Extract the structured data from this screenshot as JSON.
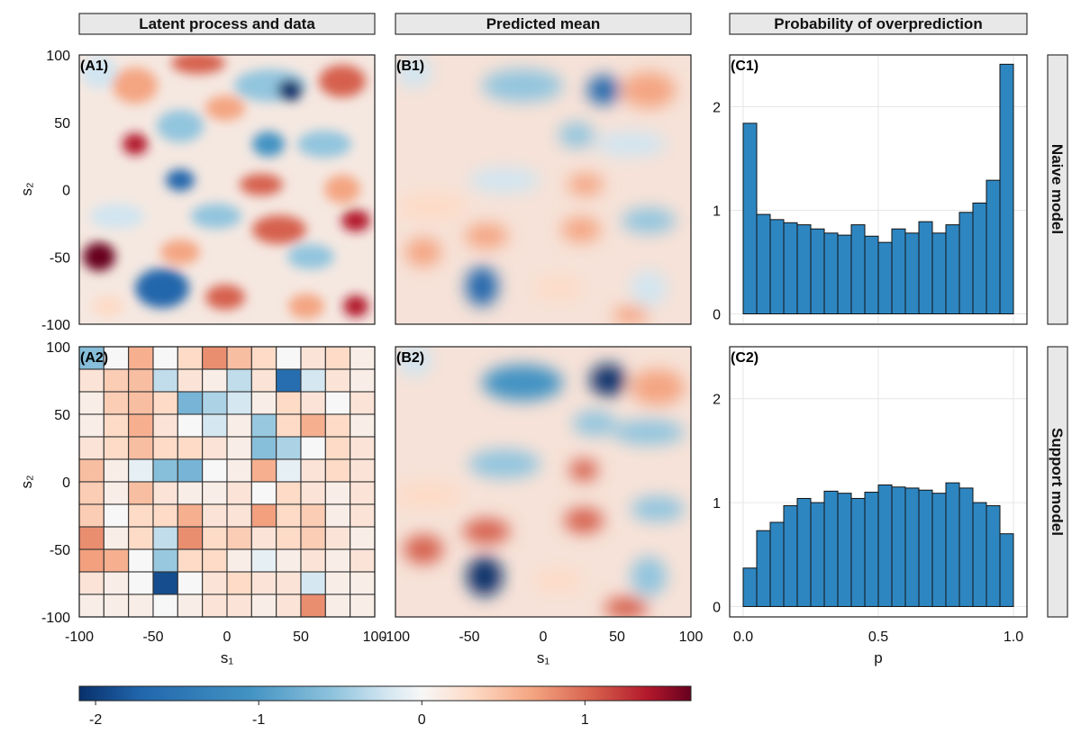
{
  "strips": {
    "col1": "Latent process and data",
    "col2": "Predicted mean",
    "col3": "Probability of overprediction",
    "row1": "Naive model",
    "row2": "Support model"
  },
  "panel_labels": {
    "a1": "(A1)",
    "b1": "(B1)",
    "c1": "(C1)",
    "a2": "(A2)",
    "b2": "(B2)",
    "c2": "(C2)"
  },
  "axes": {
    "s1_label": "s₁",
    "s2_label": "s₂",
    "p_label": "p",
    "spatial_ticks": [
      "-100",
      "-50",
      "0",
      "50",
      "100"
    ],
    "p_ticks": [
      "0.0",
      "0.5",
      "1.0"
    ],
    "density_ticks": [
      "0",
      "1",
      "2"
    ]
  },
  "colorbar": {
    "ticks": [
      "-2",
      "-1",
      "0",
      "1"
    ],
    "range": [
      -2.1,
      1.65
    ]
  },
  "colors": {
    "bar_fill": "#2e86c1",
    "bar_edge": "#111111",
    "diverging": [
      "#08306b",
      "#2166ac",
      "#4393c3",
      "#92c5de",
      "#d1e5f0",
      "#f7f7f7",
      "#fddbc7",
      "#f4a582",
      "#d6604d",
      "#b2182b",
      "#67001f"
    ]
  },
  "chart_data": [
    {
      "type": "bar",
      "panel": "C1",
      "xlabel": "",
      "ylabel": "",
      "bin_edges": [
        0.0,
        0.05,
        0.1,
        0.15,
        0.2,
        0.25,
        0.3,
        0.35,
        0.4,
        0.45,
        0.5,
        0.55,
        0.6,
        0.65,
        0.7,
        0.75,
        0.8,
        0.85,
        0.9,
        0.95,
        1.0
      ],
      "values": [
        1.84,
        0.96,
        0.91,
        0.88,
        0.86,
        0.82,
        0.78,
        0.76,
        0.86,
        0.75,
        0.69,
        0.82,
        0.78,
        0.89,
        0.78,
        0.86,
        0.98,
        1.07,
        1.29,
        2.41
      ],
      "xlim": [
        -0.05,
        1.05
      ],
      "ylim": [
        -0.1,
        2.5
      ],
      "grid": true
    },
    {
      "type": "bar",
      "panel": "C2",
      "xlabel": "p",
      "ylabel": "",
      "bin_edges": [
        0.0,
        0.05,
        0.1,
        0.15,
        0.2,
        0.25,
        0.3,
        0.35,
        0.4,
        0.45,
        0.5,
        0.55,
        0.6,
        0.65,
        0.7,
        0.75,
        0.8,
        0.85,
        0.9,
        0.95,
        1.0
      ],
      "values": [
        0.37,
        0.73,
        0.81,
        0.97,
        1.04,
        1.0,
        1.11,
        1.09,
        1.04,
        1.1,
        1.17,
        1.15,
        1.14,
        1.12,
        1.09,
        1.19,
        1.14,
        1.0,
        0.97,
        0.7
      ],
      "xlim": [
        -0.05,
        1.05
      ],
      "ylim": [
        -0.1,
        2.5
      ],
      "grid": true
    },
    {
      "type": "heatmap",
      "panel": "A2",
      "xlim": [
        -100,
        100
      ],
      "ylim": [
        -100,
        100
      ],
      "rows_top_to_bottom": [
        [
          -0.6,
          0.0,
          0.6,
          0.0,
          0.3,
          0.8,
          0.5,
          0.3,
          0.0,
          0.2,
          0.3,
          0.1
        ],
        [
          0.2,
          0.4,
          0.5,
          -0.3,
          0.2,
          0.1,
          -0.3,
          0.2,
          -1.6,
          -0.2,
          0.2,
          0.1
        ],
        [
          0.1,
          0.4,
          0.5,
          0.3,
          -0.7,
          -0.4,
          -0.2,
          0.1,
          0.3,
          0.2,
          0.0,
          0.2
        ],
        [
          0.1,
          0.3,
          0.6,
          0.2,
          0.0,
          -0.2,
          0.1,
          -0.5,
          0.3,
          0.6,
          0.3,
          0.1
        ],
        [
          0.2,
          0.3,
          0.5,
          0.3,
          0.3,
          0.2,
          0.1,
          -0.6,
          -0.4,
          0.0,
          0.3,
          0.2
        ],
        [
          0.5,
          0.1,
          -0.1,
          -0.6,
          -0.7,
          0.0,
          0.1,
          0.6,
          -0.1,
          0.2,
          0.3,
          0.2
        ],
        [
          0.4,
          0.1,
          0.5,
          0.2,
          0.1,
          0.1,
          0.2,
          0.0,
          0.3,
          0.2,
          0.1,
          0.2
        ],
        [
          0.4,
          0.0,
          0.3,
          0.3,
          0.6,
          0.2,
          0.2,
          0.7,
          0.3,
          0.4,
          0.1,
          0.2
        ],
        [
          0.8,
          0.1,
          0.3,
          -0.3,
          0.8,
          0.3,
          0.4,
          0.2,
          0.3,
          0.4,
          0.2,
          0.1
        ],
        [
          0.7,
          0.6,
          0.0,
          -0.5,
          0.3,
          0.3,
          0.1,
          -0.1,
          0.1,
          0.2,
          0.1,
          0.2
        ],
        [
          0.2,
          0.1,
          0.0,
          -1.9,
          0.0,
          0.2,
          0.3,
          0.2,
          0.2,
          -0.2,
          0.1,
          0.1
        ],
        [
          0.1,
          0.1,
          0.1,
          0.0,
          0.1,
          0.2,
          0.2,
          0.1,
          0.2,
          0.8,
          0.1,
          0.1
        ]
      ]
    }
  ]
}
